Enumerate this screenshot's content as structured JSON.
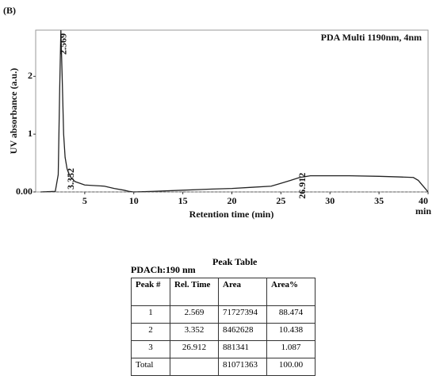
{
  "chart_data": {
    "type": "line",
    "panel_label": "(B)",
    "title": "PDA Multi 1190nm, 4nm",
    "x_label": "Retention time (min)",
    "y_label": "UV absorbance (a.u.)",
    "x": [
      0.5,
      2.0,
      2.3,
      2.45,
      2.569,
      2.7,
      2.85,
      3.0,
      3.2,
      3.352,
      3.6,
      4.0,
      5.0,
      6.0,
      7.0,
      8.0,
      9.0,
      9.5,
      10,
      12,
      15,
      18,
      20,
      22,
      24,
      25,
      26,
      26.912,
      28,
      30,
      32,
      35,
      37,
      38.5,
      39,
      39.5,
      40
    ],
    "values": [
      0,
      0.01,
      0.3,
      1.8,
      2.8,
      2.0,
      1.0,
      0.6,
      0.4,
      0.33,
      0.25,
      0.18,
      0.12,
      0.11,
      0.1,
      0.06,
      0.03,
      0.01,
      0.0,
      0.01,
      0.03,
      0.05,
      0.06,
      0.08,
      0.1,
      0.15,
      0.2,
      0.25,
      0.28,
      0.28,
      0.28,
      0.27,
      0.26,
      0.25,
      0.2,
      0.1,
      0.0
    ],
    "color": "#222222",
    "peaks": [
      2.569,
      3.352,
      26.912
    ],
    "xlim": [
      0,
      40
    ],
    "ylim": [
      0,
      2.8
    ],
    "xticks": [
      5,
      10,
      15,
      20,
      25,
      30,
      35,
      40
    ],
    "x_unit": "min",
    "yticks": [
      {
        "value": 0,
        "label": "0.00"
      },
      1,
      2
    ]
  },
  "table": {
    "channel": "PDACh:190 nm",
    "title": "Peak Table",
    "header": [
      "Peak #",
      "Rel. Time",
      "Area",
      "Area%"
    ],
    "rows": [
      [
        "1",
        "2.569",
        "71727394",
        "88.474"
      ],
      [
        "2",
        "3.352",
        "8462628",
        "10.438"
      ],
      [
        "3",
        "26.912",
        "881341",
        "1.087"
      ],
      [
        "Total",
        "",
        "81071363",
        "100.00"
      ]
    ]
  }
}
